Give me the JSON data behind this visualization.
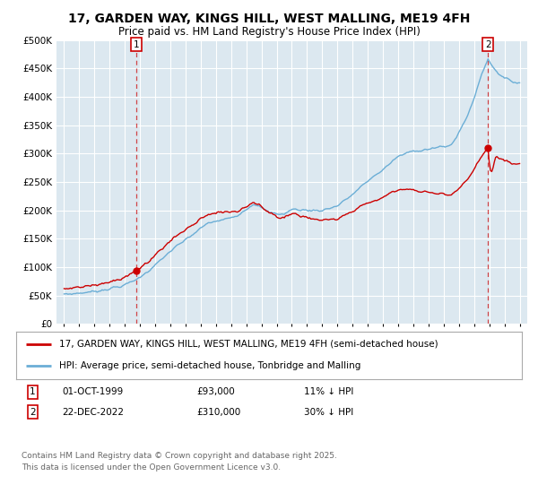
{
  "title": "17, GARDEN WAY, KINGS HILL, WEST MALLING, ME19 4FH",
  "subtitle": "Price paid vs. HM Land Registry's House Price Index (HPI)",
  "ytick_values": [
    0,
    50000,
    100000,
    150000,
    200000,
    250000,
    300000,
    350000,
    400000,
    450000,
    500000
  ],
  "hpi_color": "#6baed6",
  "price_color": "#cc0000",
  "sale1_year": 1999.75,
  "sale1_price": 93000,
  "sale2_year": 2022.917,
  "sale2_price": 310000,
  "legend_line1": "17, GARDEN WAY, KINGS HILL, WEST MALLING, ME19 4FH (semi-detached house)",
  "legend_line2": "HPI: Average price, semi-detached house, Tonbridge and Malling",
  "sale1_date": "01-OCT-1999",
  "sale1_pricef": "£93,000",
  "sale1_hpi": "11% ↓ HPI",
  "sale2_date": "22-DEC-2022",
  "sale2_pricef": "£310,000",
  "sale2_hpi": "30% ↓ HPI",
  "footer": "Contains HM Land Registry data © Crown copyright and database right 2025.\nThis data is licensed under the Open Government Licence v3.0.",
  "bg_color": "#ffffff",
  "plot_bg_color": "#dce8f0",
  "grid_color": "#ffffff",
  "title_fontsize": 10,
  "subtitle_fontsize": 8.5
}
